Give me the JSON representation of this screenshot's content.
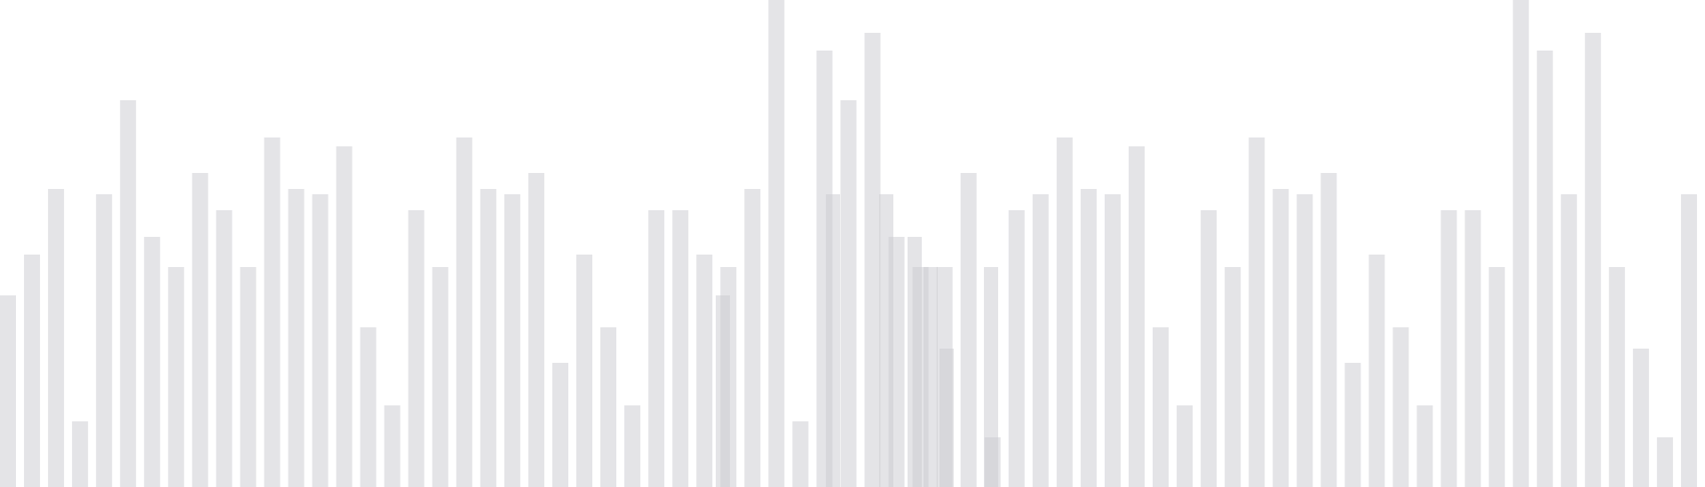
{
  "chart_data": {
    "type": "bar",
    "title": "",
    "xlabel": "",
    "ylabel": "",
    "ylim": [
      0,
      549
    ],
    "grid": false,
    "legend": "none",
    "bar_color": "#c9c9cf",
    "bar_opacity": 0.5,
    "series": [
      {
        "values": [
          216,
          262,
          336,
          74,
          330,
          436,
          282,
          248,
          354,
          312,
          248,
          394,
          336,
          330,
          384,
          180,
          92,
          312,
          248,
          394,
          336,
          330,
          354,
          140,
          262,
          180,
          92,
          312,
          312,
          262,
          248,
          336,
          549,
          74,
          492,
          436,
          512,
          282,
          248,
          248,
          354,
          56,
          312,
          330,
          394,
          336,
          330,
          384,
          180,
          92,
          312,
          248,
          394,
          336,
          330,
          354,
          140,
          262,
          180,
          92,
          312,
          312,
          248,
          549,
          492,
          330,
          512,
          248,
          156,
          56,
          330
        ]
      },
      {
        "values": [
          216,
          330,
          330,
          282,
          248,
          156,
          248
        ]
      }
    ]
  }
}
